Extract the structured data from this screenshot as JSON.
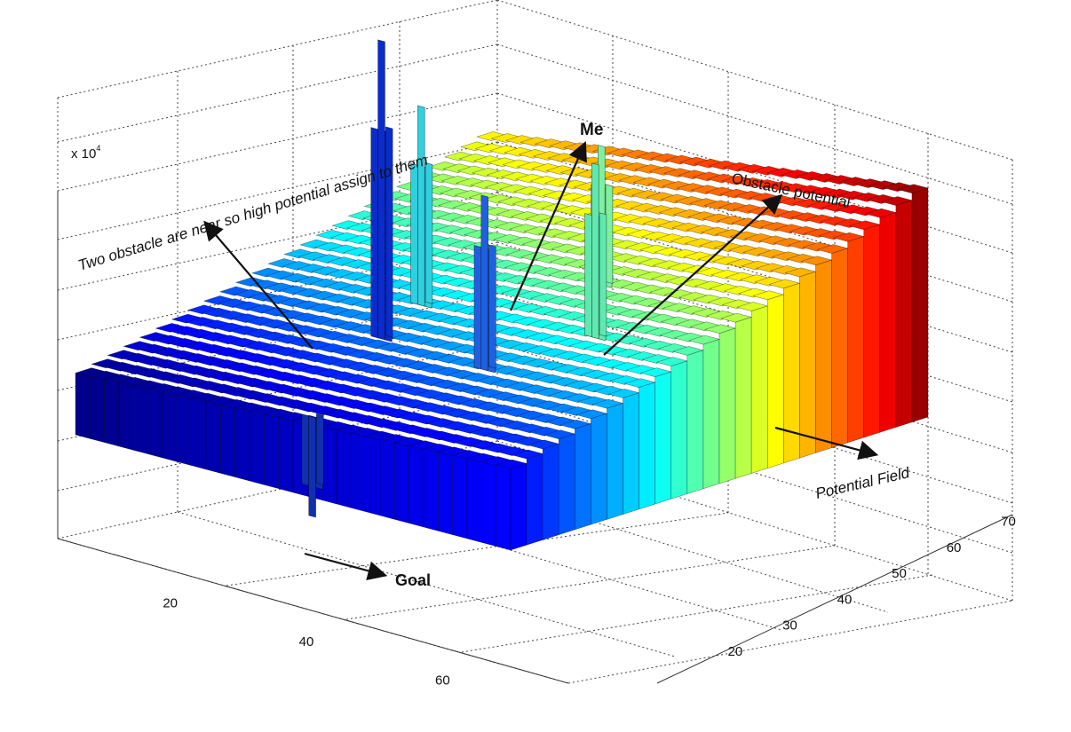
{
  "chart_data": {
    "type": "bar3d",
    "title": "",
    "xlabel": "",
    "ylabel": "",
    "zlabel": "",
    "x_ticks": [
      20,
      40,
      60
    ],
    "y_ticks": [
      20,
      30,
      40,
      50,
      60,
      70
    ],
    "z_multiplier_label": "x 10",
    "z_multiplier_exp": "4",
    "xlim": [
      0,
      75
    ],
    "ylim": [
      10,
      75
    ],
    "grid": true,
    "colormap": "jet",
    "surface": {
      "description_values": "potential rises with y and with x",
      "corner_values": {
        "x0_y10": 1.2,
        "x75_y10": 1.6,
        "x0_y75": 3.1,
        "x75_y75": 4.0
      }
    },
    "spikes": [
      {
        "label": "obstacle",
        "x": 30,
        "y": 30,
        "height": 6.0,
        "color": "#0a2ccc"
      },
      {
        "label": "obstacle",
        "x": 28,
        "y": 38,
        "height": 4.0,
        "color": "#30d0e0"
      },
      {
        "label": "obstacle",
        "x": 50,
        "y": 28,
        "height": 3.5,
        "color": "#2060e0"
      },
      {
        "label": "me",
        "x": 48,
        "y": 48,
        "height": 2.8,
        "color": "#80f0a0"
      },
      {
        "label": "obstacle",
        "x": 58,
        "y": 38,
        "height": 3.5,
        "color": "#60e8b0"
      },
      {
        "label": "goal",
        "x": 38,
        "y": 12,
        "height": -2.0,
        "color": "#1030b0"
      }
    ],
    "annotations": [
      {
        "id": "two-obstacles",
        "text": "Two obstacle are near so high potential assign to them"
      },
      {
        "id": "me",
        "text": "Me"
      },
      {
        "id": "obstacle-potential",
        "text": "Obstacle potential"
      },
      {
        "id": "potential-field",
        "text": "Potential Field"
      },
      {
        "id": "goal",
        "text": "Goal"
      }
    ]
  }
}
